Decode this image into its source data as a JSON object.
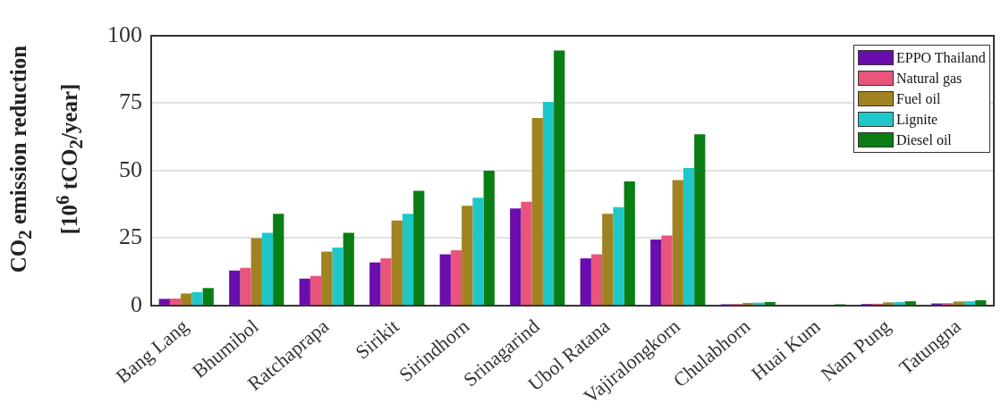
{
  "chart_data": {
    "type": "bar",
    "ylabel": "CO$_{2}$ emission reduction\n[10$^{6}$ tCO$_{2}$/year]",
    "categories": [
      "Bang Lang",
      "Bhumibol",
      "Ratchaprapa",
      "Sirikit",
      "Sirindhorn",
      "Srinagarind",
      "Ubol Ratana",
      "Vajiralongkorn",
      "Chulabhorn",
      "Huai Kum",
      "Nam Pung",
      "Tatungna"
    ],
    "series": [
      {
        "name": "EPPO Thailand",
        "color": "#6a0dad",
        "values": [
          2.5,
          13,
          10,
          16,
          19,
          36,
          17.5,
          24.5,
          0.5,
          null,
          0.6,
          0.8
        ]
      },
      {
        "name": "Natural gas",
        "color": "#e8547a",
        "values": [
          2.6,
          14,
          11,
          17.5,
          20.5,
          38.5,
          19,
          26,
          0.6,
          null,
          0.7,
          0.9
        ]
      },
      {
        "name": "Fuel oil",
        "color": "#a08320",
        "values": [
          4.5,
          25,
          20,
          31.5,
          37,
          69.5,
          34,
          46.5,
          1,
          null,
          1.2,
          1.5
        ]
      },
      {
        "name": "Lignite",
        "color": "#1ec8c8",
        "values": [
          5,
          27,
          21.5,
          34,
          40,
          75.5,
          36.5,
          51,
          1.1,
          null,
          1.3,
          1.6
        ]
      },
      {
        "name": "Diesel oil",
        "color": "#0a7d14",
        "values": [
          6.5,
          34,
          27,
          42.5,
          50,
          94.5,
          46,
          63.5,
          1.3,
          0.5,
          1.6,
          2
        ]
      }
    ],
    "ylim": [
      0,
      100
    ],
    "yticks": [
      0,
      25,
      50,
      75,
      100
    ],
    "grid": "y",
    "legend": "top right"
  }
}
